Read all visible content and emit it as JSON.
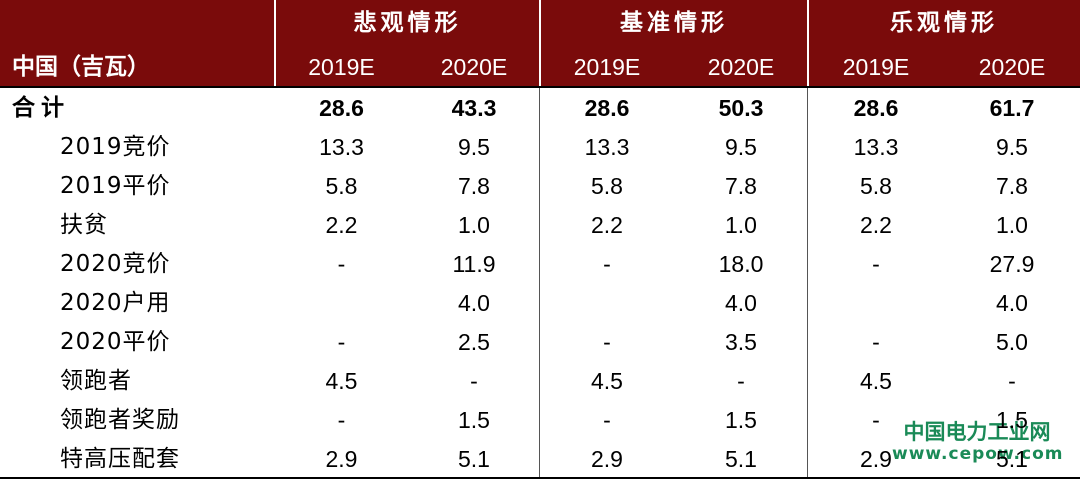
{
  "table": {
    "groups": [
      "悲观情形",
      "基准情形",
      "乐观情形"
    ],
    "unit_label": "中国（吉瓦）",
    "years": [
      "2019E",
      "2020E",
      "2019E",
      "2020E",
      "2019E",
      "2020E"
    ],
    "rows": [
      [
        "合计",
        "28.6",
        "43.3",
        "28.6",
        "50.3",
        "28.6",
        "61.7"
      ],
      [
        "2019竞价",
        "13.3",
        "9.5",
        "13.3",
        "9.5",
        "13.3",
        "9.5"
      ],
      [
        "2019平价",
        "5.8",
        "7.8",
        "5.8",
        "7.8",
        "5.8",
        "7.8"
      ],
      [
        "扶贫",
        "2.2",
        "1.0",
        "2.2",
        "1.0",
        "2.2",
        "1.0"
      ],
      [
        "2020竞价",
        "-",
        "11.9",
        "-",
        "18.0",
        "-",
        "27.9"
      ],
      [
        "2020户用",
        null,
        "4.0",
        null,
        "4.0",
        null,
        "4.0"
      ],
      [
        "2020平价",
        "-",
        "2.5",
        "-",
        "3.5",
        "-",
        "5.0"
      ],
      [
        "领跑者",
        "4.5",
        "-",
        "4.5",
        "-",
        "4.5",
        "-"
      ],
      [
        "领跑者奖励",
        "-",
        "1.5",
        "-",
        "1.5",
        "-",
        "1.5"
      ],
      [
        "特高压配套",
        "2.9",
        "5.1",
        "2.9",
        "5.1",
        "2.9",
        "5.1"
      ]
    ]
  },
  "watermark": {
    "name": "中国电力工业网",
    "url": "www.cepow.com"
  }
}
